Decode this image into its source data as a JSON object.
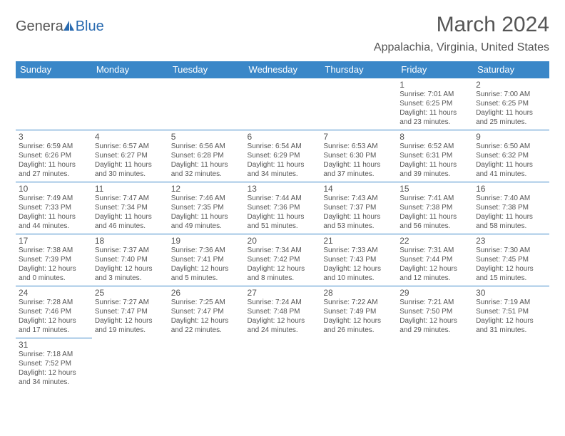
{
  "logo": {
    "part1": "Genera",
    "part2": "Blue"
  },
  "title": "March 2024",
  "location": "Appalachia, Virginia, United States",
  "header_bg": "#3a87c8",
  "header_fg": "#ffffff",
  "border_color": "#3a87c8",
  "text_color": "#555555",
  "weekdays": [
    "Sunday",
    "Monday",
    "Tuesday",
    "Wednesday",
    "Thursday",
    "Friday",
    "Saturday"
  ],
  "weeks": [
    [
      null,
      null,
      null,
      null,
      null,
      {
        "d": "1",
        "sr": "Sunrise: 7:01 AM",
        "ss": "Sunset: 6:25 PM",
        "dl1": "Daylight: 11 hours",
        "dl2": "and 23 minutes."
      },
      {
        "d": "2",
        "sr": "Sunrise: 7:00 AM",
        "ss": "Sunset: 6:25 PM",
        "dl1": "Daylight: 11 hours",
        "dl2": "and 25 minutes."
      }
    ],
    [
      {
        "d": "3",
        "sr": "Sunrise: 6:59 AM",
        "ss": "Sunset: 6:26 PM",
        "dl1": "Daylight: 11 hours",
        "dl2": "and 27 minutes."
      },
      {
        "d": "4",
        "sr": "Sunrise: 6:57 AM",
        "ss": "Sunset: 6:27 PM",
        "dl1": "Daylight: 11 hours",
        "dl2": "and 30 minutes."
      },
      {
        "d": "5",
        "sr": "Sunrise: 6:56 AM",
        "ss": "Sunset: 6:28 PM",
        "dl1": "Daylight: 11 hours",
        "dl2": "and 32 minutes."
      },
      {
        "d": "6",
        "sr": "Sunrise: 6:54 AM",
        "ss": "Sunset: 6:29 PM",
        "dl1": "Daylight: 11 hours",
        "dl2": "and 34 minutes."
      },
      {
        "d": "7",
        "sr": "Sunrise: 6:53 AM",
        "ss": "Sunset: 6:30 PM",
        "dl1": "Daylight: 11 hours",
        "dl2": "and 37 minutes."
      },
      {
        "d": "8",
        "sr": "Sunrise: 6:52 AM",
        "ss": "Sunset: 6:31 PM",
        "dl1": "Daylight: 11 hours",
        "dl2": "and 39 minutes."
      },
      {
        "d": "9",
        "sr": "Sunrise: 6:50 AM",
        "ss": "Sunset: 6:32 PM",
        "dl1": "Daylight: 11 hours",
        "dl2": "and 41 minutes."
      }
    ],
    [
      {
        "d": "10",
        "sr": "Sunrise: 7:49 AM",
        "ss": "Sunset: 7:33 PM",
        "dl1": "Daylight: 11 hours",
        "dl2": "and 44 minutes."
      },
      {
        "d": "11",
        "sr": "Sunrise: 7:47 AM",
        "ss": "Sunset: 7:34 PM",
        "dl1": "Daylight: 11 hours",
        "dl2": "and 46 minutes."
      },
      {
        "d": "12",
        "sr": "Sunrise: 7:46 AM",
        "ss": "Sunset: 7:35 PM",
        "dl1": "Daylight: 11 hours",
        "dl2": "and 49 minutes."
      },
      {
        "d": "13",
        "sr": "Sunrise: 7:44 AM",
        "ss": "Sunset: 7:36 PM",
        "dl1": "Daylight: 11 hours",
        "dl2": "and 51 minutes."
      },
      {
        "d": "14",
        "sr": "Sunrise: 7:43 AM",
        "ss": "Sunset: 7:37 PM",
        "dl1": "Daylight: 11 hours",
        "dl2": "and 53 minutes."
      },
      {
        "d": "15",
        "sr": "Sunrise: 7:41 AM",
        "ss": "Sunset: 7:38 PM",
        "dl1": "Daylight: 11 hours",
        "dl2": "and 56 minutes."
      },
      {
        "d": "16",
        "sr": "Sunrise: 7:40 AM",
        "ss": "Sunset: 7:38 PM",
        "dl1": "Daylight: 11 hours",
        "dl2": "and 58 minutes."
      }
    ],
    [
      {
        "d": "17",
        "sr": "Sunrise: 7:38 AM",
        "ss": "Sunset: 7:39 PM",
        "dl1": "Daylight: 12 hours",
        "dl2": "and 0 minutes."
      },
      {
        "d": "18",
        "sr": "Sunrise: 7:37 AM",
        "ss": "Sunset: 7:40 PM",
        "dl1": "Daylight: 12 hours",
        "dl2": "and 3 minutes."
      },
      {
        "d": "19",
        "sr": "Sunrise: 7:36 AM",
        "ss": "Sunset: 7:41 PM",
        "dl1": "Daylight: 12 hours",
        "dl2": "and 5 minutes."
      },
      {
        "d": "20",
        "sr": "Sunrise: 7:34 AM",
        "ss": "Sunset: 7:42 PM",
        "dl1": "Daylight: 12 hours",
        "dl2": "and 8 minutes."
      },
      {
        "d": "21",
        "sr": "Sunrise: 7:33 AM",
        "ss": "Sunset: 7:43 PM",
        "dl1": "Daylight: 12 hours",
        "dl2": "and 10 minutes."
      },
      {
        "d": "22",
        "sr": "Sunrise: 7:31 AM",
        "ss": "Sunset: 7:44 PM",
        "dl1": "Daylight: 12 hours",
        "dl2": "and 12 minutes."
      },
      {
        "d": "23",
        "sr": "Sunrise: 7:30 AM",
        "ss": "Sunset: 7:45 PM",
        "dl1": "Daylight: 12 hours",
        "dl2": "and 15 minutes."
      }
    ],
    [
      {
        "d": "24",
        "sr": "Sunrise: 7:28 AM",
        "ss": "Sunset: 7:46 PM",
        "dl1": "Daylight: 12 hours",
        "dl2": "and 17 minutes."
      },
      {
        "d": "25",
        "sr": "Sunrise: 7:27 AM",
        "ss": "Sunset: 7:47 PM",
        "dl1": "Daylight: 12 hours",
        "dl2": "and 19 minutes."
      },
      {
        "d": "26",
        "sr": "Sunrise: 7:25 AM",
        "ss": "Sunset: 7:47 PM",
        "dl1": "Daylight: 12 hours",
        "dl2": "and 22 minutes."
      },
      {
        "d": "27",
        "sr": "Sunrise: 7:24 AM",
        "ss": "Sunset: 7:48 PM",
        "dl1": "Daylight: 12 hours",
        "dl2": "and 24 minutes."
      },
      {
        "d": "28",
        "sr": "Sunrise: 7:22 AM",
        "ss": "Sunset: 7:49 PM",
        "dl1": "Daylight: 12 hours",
        "dl2": "and 26 minutes."
      },
      {
        "d": "29",
        "sr": "Sunrise: 7:21 AM",
        "ss": "Sunset: 7:50 PM",
        "dl1": "Daylight: 12 hours",
        "dl2": "and 29 minutes."
      },
      {
        "d": "30",
        "sr": "Sunrise: 7:19 AM",
        "ss": "Sunset: 7:51 PM",
        "dl1": "Daylight: 12 hours",
        "dl2": "and 31 minutes."
      }
    ],
    [
      {
        "d": "31",
        "sr": "Sunrise: 7:18 AM",
        "ss": "Sunset: 7:52 PM",
        "dl1": "Daylight: 12 hours",
        "dl2": "and 34 minutes."
      },
      null,
      null,
      null,
      null,
      null,
      null
    ]
  ]
}
